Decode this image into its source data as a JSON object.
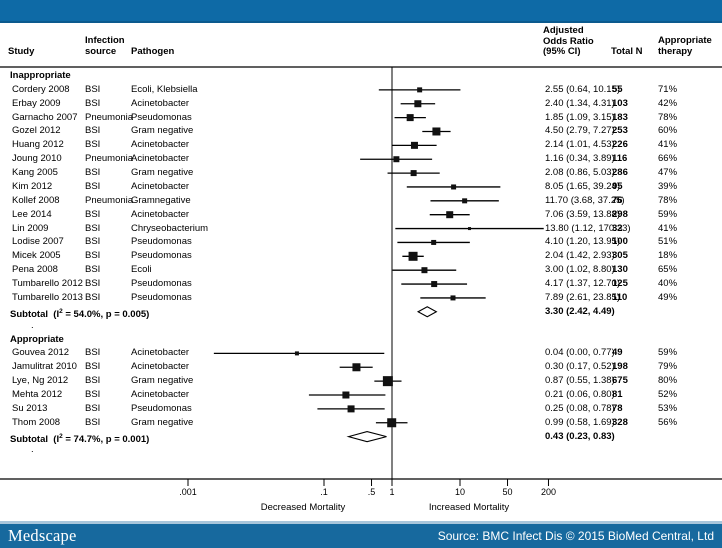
{
  "colors": {
    "top_bar": "#0e6aa6",
    "top_bar_edge": "#0b5a8e",
    "bottom_bar": "#17699e",
    "strip": "#a9c6db",
    "ink": "#000000",
    "marker": "#111111"
  },
  "header": {
    "study": "Study",
    "infection": [
      "Infection",
      "source"
    ],
    "pathogen": "Pathogen",
    "or": [
      "Adjusted",
      "Odds Ratio",
      "(95% CI)"
    ],
    "total_n": "Total N",
    "appropriate": [
      "Appropriate",
      "therapy"
    ]
  },
  "chart_data": {
    "type": "forest",
    "x_scale": "log10",
    "null_value": 1,
    "x_tick_labels": [
      ".001",
      ".1",
      ".5",
      "1",
      "10",
      "50",
      "200"
    ],
    "x_tick_values": [
      0.001,
      0.1,
      0.5,
      1,
      10,
      50,
      200
    ],
    "axis_label_left": "Decreased Mortality",
    "axis_label_right": "Increased Mortality",
    "groups": [
      {
        "label": "Inappropriate",
        "studies": [
          {
            "study": "Cordery 2008",
            "source": "BSI",
            "pathogen": "Ecoli, Klebsiella",
            "or": 2.55,
            "lo": 0.64,
            "hi": 10.15,
            "or_text": "2.55 (0.64, 10.15)",
            "n": "55",
            "pct": "71%",
            "weight": 5
          },
          {
            "study": "Erbay 2009",
            "source": "BSI",
            "pathogen": "Acinetobacter",
            "or": 2.4,
            "lo": 1.34,
            "hi": 4.31,
            "or_text": "2.40 (1.34, 4.31)",
            "n": "103",
            "pct": "42%",
            "weight": 7
          },
          {
            "study": "Garnacho 2007",
            "source": "Pneumonia",
            "pathogen": "Pseudomonas",
            "or": 1.85,
            "lo": 1.09,
            "hi": 3.15,
            "or_text": "1.85 (1.09, 3.15)",
            "n": "183",
            "pct": "78%",
            "weight": 7
          },
          {
            "study": "Gozel 2012",
            "source": "BSI",
            "pathogen": "Gram negative",
            "or": 4.5,
            "lo": 2.79,
            "hi": 7.27,
            "or_text": "4.50 (2.79, 7.27)",
            "n": "253",
            "pct": "60%",
            "weight": 8
          },
          {
            "study": "Huang 2012",
            "source": "BSI",
            "pathogen": "Acinetobacter",
            "or": 2.14,
            "lo": 1.01,
            "hi": 4.53,
            "or_text": "2.14 (1.01, 4.53)",
            "n": "226",
            "pct": "41%",
            "weight": 7
          },
          {
            "study": "Joung 2010",
            "source": "Pneumonia",
            "pathogen": "Acinetobacter",
            "or": 1.16,
            "lo": 0.34,
            "hi": 3.89,
            "or_text": "1.16 (0.34, 3.89)",
            "n": "116",
            "pct": "66%",
            "weight": 6
          },
          {
            "study": "Kang 2005",
            "source": "BSI",
            "pathogen": "Gram negative",
            "or": 2.08,
            "lo": 0.86,
            "hi": 5.03,
            "or_text": "2.08 (0.86, 5.03)",
            "n": "286",
            "pct": "47%",
            "weight": 6
          },
          {
            "study": "Kim 2012",
            "source": "BSI",
            "pathogen": "Acinetobacter",
            "or": 8.05,
            "lo": 1.65,
            "hi": 39.24,
            "or_text": "8.05 (1.65, 39.24)",
            "n": "95",
            "pct": "39%",
            "weight": 5
          },
          {
            "study": "Kollef 2008",
            "source": "Pneumonia",
            "pathogen": "Gramnegative",
            "or": 11.7,
            "lo": 3.68,
            "hi": 37.25,
            "or_text": "11.70 (3.68, 37.25)",
            "n": "76",
            "pct": "78%",
            "weight": 5
          },
          {
            "study": "Lee 2014",
            "source": "BSI",
            "pathogen": "Acinetobacter",
            "or": 7.06,
            "lo": 3.59,
            "hi": 13.88,
            "or_text": "7.06 (3.59, 13.88)",
            "n": "298",
            "pct": "59%",
            "weight": 7
          },
          {
            "study": "Lin 2009",
            "source": "BSI",
            "pathogen": "Chryseobacterium",
            "or": 13.8,
            "lo": 1.12,
            "hi": 170.33,
            "or_text": "13.80 (1.12, 170.33)",
            "n": "32",
            "pct": "41%",
            "weight": 3
          },
          {
            "study": "Lodise 2007",
            "source": "BSI",
            "pathogen": "Pseudomonas",
            "or": 4.1,
            "lo": 1.2,
            "hi": 13.95,
            "or_text": "4.10 (1.20, 13.95)",
            "n": "100",
            "pct": "51%",
            "weight": 5
          },
          {
            "study": "Micek 2005",
            "source": "BSI",
            "pathogen": "Pseudomonas",
            "or": 2.04,
            "lo": 1.42,
            "hi": 2.93,
            "or_text": "2.04 (1.42, 2.93)",
            "n": "305",
            "pct": "18%",
            "weight": 9
          },
          {
            "study": "Pena 2008",
            "source": "BSI",
            "pathogen": "Ecoli",
            "or": 3.0,
            "lo": 1.02,
            "hi": 8.8,
            "or_text": "3.00 (1.02, 8.80)",
            "n": "130",
            "pct": "65%",
            "weight": 6
          },
          {
            "study": "Tumbarello 2012",
            "source": "BSI",
            "pathogen": "Pseudomonas",
            "or": 4.17,
            "lo": 1.37,
            "hi": 12.7,
            "or_text": "4.17 (1.37, 12.70)",
            "n": "125",
            "pct": "40%",
            "weight": 6
          },
          {
            "study": "Tumbarello 2013",
            "source": "BSI",
            "pathogen": "Pseudomonas",
            "or": 7.89,
            "lo": 2.61,
            "hi": 23.85,
            "or_text": "7.89 (2.61, 23.85)",
            "n": "110",
            "pct": "49%",
            "weight": 5
          }
        ],
        "subtotal": {
          "i2": "54.0%",
          "p": "0.005",
          "or": 3.3,
          "lo": 2.42,
          "hi": 4.49,
          "or_text": "3.30 (2.42, 4.49)"
        }
      },
      {
        "label": "Appropriate",
        "studies": [
          {
            "study": "Gouvea 2012",
            "source": "BSI",
            "pathogen": "Acinetobacter",
            "or": 0.04,
            "lo": 0.0,
            "plot_lo": 0.0024,
            "hi": 0.77,
            "or_text": "0.04 (0.00, 0.77)",
            "n": "49",
            "pct": "59%",
            "weight": 4
          },
          {
            "study": "Jamulitrat 2010",
            "source": "BSI",
            "pathogen": "Acinetobacter",
            "or": 0.3,
            "lo": 0.17,
            "hi": 0.52,
            "or_text": "0.30 (0.17, 0.52)",
            "n": "198",
            "pct": "79%",
            "weight": 8
          },
          {
            "study": "Lye, Ng 2012",
            "source": "BSI",
            "pathogen": "Gram negative",
            "or": 0.87,
            "lo": 0.55,
            "hi": 1.38,
            "or_text": "0.87 (0.55, 1.38)",
            "n": "675",
            "pct": "80%",
            "weight": 10
          },
          {
            "study": "Mehta 2012",
            "source": "BSI",
            "pathogen": "Acinetobacter",
            "or": 0.21,
            "lo": 0.06,
            "hi": 0.8,
            "or_text": "0.21 (0.06, 0.80)",
            "n": "81",
            "pct": "52%",
            "weight": 7
          },
          {
            "study": "Su 2013",
            "source": "BSI",
            "pathogen": "Pseudomonas",
            "or": 0.25,
            "lo": 0.08,
            "hi": 0.78,
            "or_text": "0.25 (0.08, 0.78)",
            "n": "78",
            "pct": "53%",
            "weight": 7
          },
          {
            "study": "Thom 2008",
            "source": "BSI",
            "pathogen": "Gram negative",
            "or": 0.99,
            "lo": 0.58,
            "hi": 1.69,
            "or_text": "0.99 (0.58, 1.69)",
            "n": "328",
            "pct": "56%",
            "weight": 9
          }
        ],
        "subtotal": {
          "i2": "74.7%",
          "p": "0.001",
          "or": 0.43,
          "lo": 0.23,
          "hi": 0.83,
          "or_text": "0.43 (0.23, 0.83)"
        }
      }
    ]
  },
  "footer": {
    "logo": "Medscape",
    "source": "Source: BMC Infect Dis © 2015 BioMed Central, Ltd"
  }
}
